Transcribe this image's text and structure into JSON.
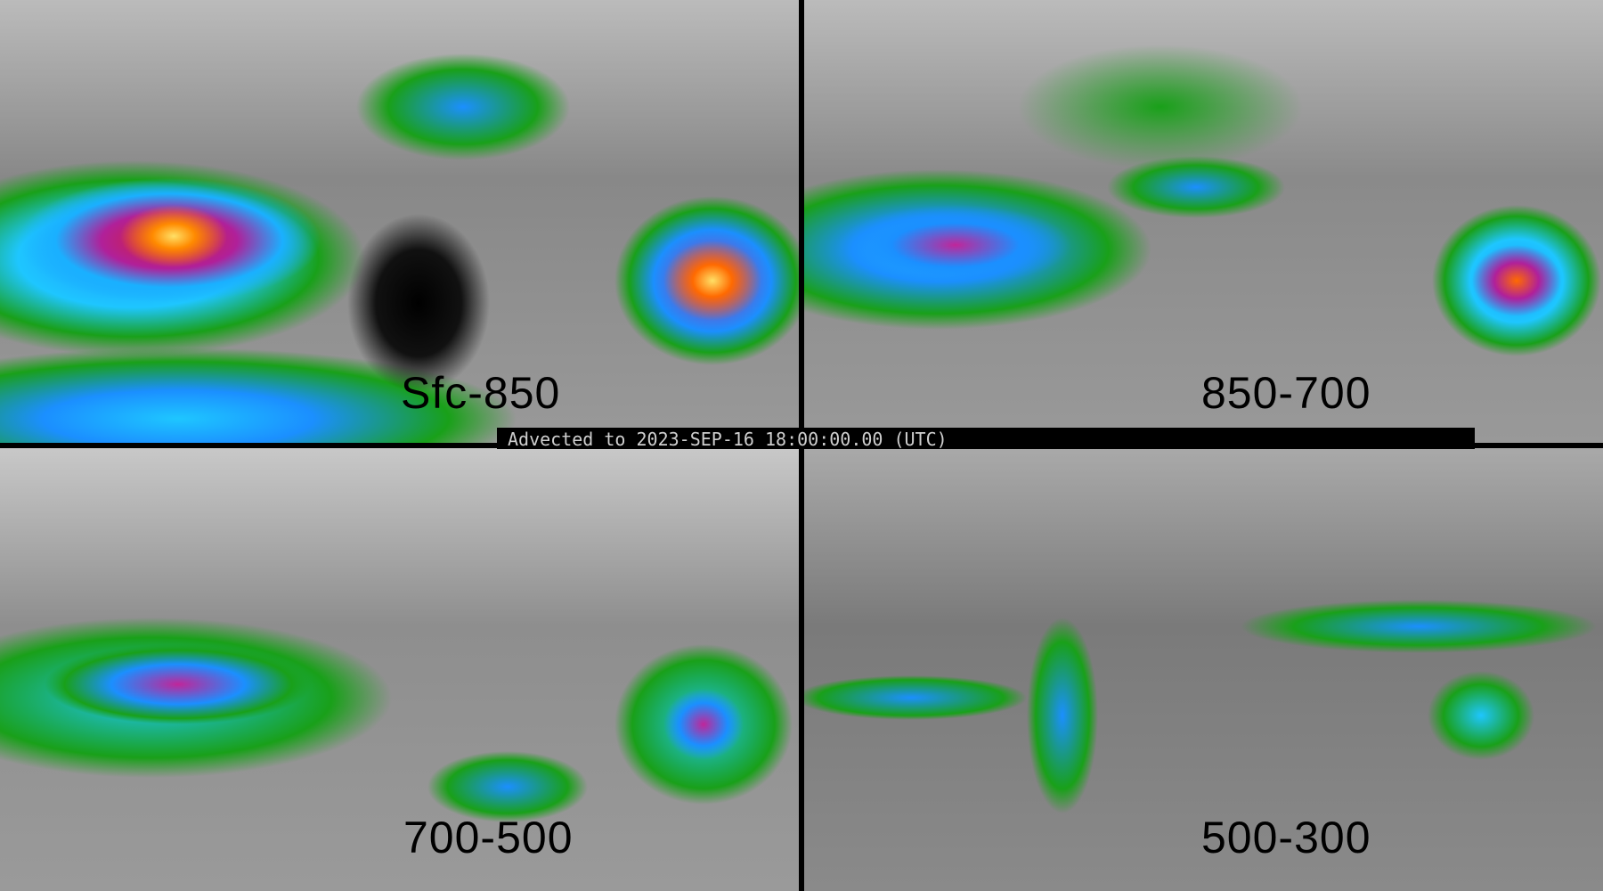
{
  "panels": [
    {
      "label": "Sfc-850"
    },
    {
      "label": "850-700"
    },
    {
      "label": "700-500"
    },
    {
      "label": "500-300"
    }
  ],
  "banner": {
    "text": "Advected to 2023-SEP-16 18:00:00.00 (UTC)"
  },
  "colors": {
    "divider": "#000000",
    "background": "#8e8e8e",
    "scale": [
      "#19a019",
      "#1b8fff",
      "#1ec6ff",
      "#b0209a",
      "#ff6a00",
      "#ffe066"
    ]
  }
}
